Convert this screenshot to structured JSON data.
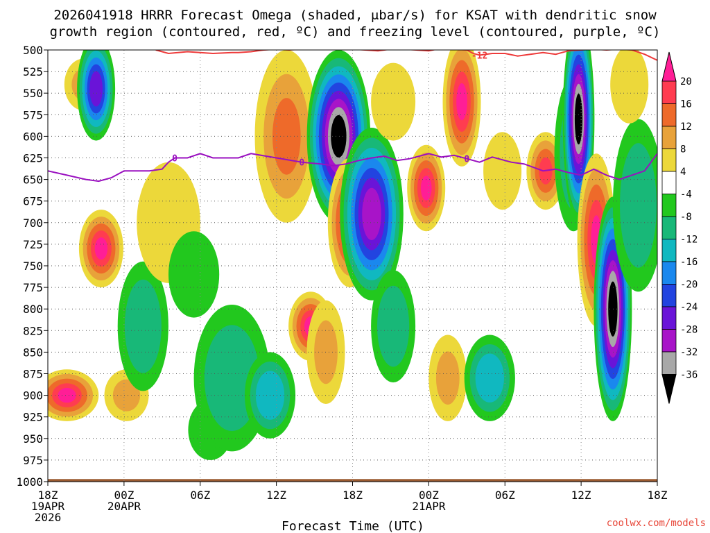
{
  "chart_data": {
    "type": "heatmap",
    "title_line1": "2026041918 HRRR Forecast Omega (shaded, μbar/s) for KSAT with dendritic snow",
    "title_line2": "growth region (contoured, red, ºC) and freezing level (contoured, purple, ºC)",
    "xlabel": "Forecast Time (UTC)",
    "ylabel": "",
    "y_axis": {
      "range": [
        1000,
        500
      ],
      "ticks": [
        500,
        525,
        550,
        575,
        600,
        625,
        650,
        675,
        700,
        725,
        750,
        775,
        800,
        825,
        850,
        875,
        900,
        925,
        950,
        975,
        1000
      ]
    },
    "x_axis": {
      "range_hours": [
        0,
        48
      ],
      "ticks": [
        {
          "hour": 0,
          "lines": [
            "18Z",
            "19APR",
            "2026"
          ]
        },
        {
          "hour": 6,
          "lines": [
            "00Z",
            "20APR"
          ]
        },
        {
          "hour": 12,
          "lines": [
            "06Z"
          ]
        },
        {
          "hour": 18,
          "lines": [
            "12Z"
          ]
        },
        {
          "hour": 24,
          "lines": [
            "18Z"
          ]
        },
        {
          "hour": 30,
          "lines": [
            "00Z",
            "21APR"
          ]
        },
        {
          "hour": 36,
          "lines": [
            "06Z"
          ]
        },
        {
          "hour": 42,
          "lines": [
            "12Z"
          ]
        },
        {
          "hour": 48,
          "lines": [
            "18Z"
          ]
        }
      ]
    },
    "grid": true,
    "colorbar": {
      "labels": [
        "20",
        "16",
        "12",
        "8",
        "4",
        "-4",
        "-8",
        "-12",
        "-16",
        "-20",
        "-24",
        "-28",
        "-32",
        "-36"
      ],
      "bins": [
        {
          "range": [
            16,
            20
          ],
          "color": "#ff3c50"
        },
        {
          "range": [
            12,
            16
          ],
          "color": "#ee6a2a"
        },
        {
          "range": [
            8,
            12
          ],
          "color": "#e8a23a"
        },
        {
          "range": [
            4,
            8
          ],
          "color": "#ecd83a"
        },
        {
          "range": [
            -4,
            4
          ],
          "color": "#ffffff"
        },
        {
          "range": [
            -8,
            -4
          ],
          "color": "#22c81e"
        },
        {
          "range": [
            -12,
            -8
          ],
          "color": "#18b878"
        },
        {
          "range": [
            -16,
            -12
          ],
          "color": "#10b8c0"
        },
        {
          "range": [
            -20,
            -16
          ],
          "color": "#1a88ee"
        },
        {
          "range": [
            -24,
            -20
          ],
          "color": "#2244e0"
        },
        {
          "range": [
            -28,
            -24
          ],
          "color": "#6a14d8"
        },
        {
          "range": [
            -32,
            -28
          ],
          "color": "#a814c8"
        },
        {
          "range": [
            -36,
            -32
          ],
          "color": "#a8a8a8"
        }
      ],
      "above_color": "#ff1e96",
      "below_color": "#000000"
    },
    "features": [
      {
        "hour": 1.5,
        "p": 900,
        "w": 5,
        "h": 60,
        "value": 20
      },
      {
        "hour": 4.2,
        "p": 730,
        "w": 3.5,
        "h": 90,
        "value": 20
      },
      {
        "hour": 2.8,
        "p": 540,
        "w": 3,
        "h": 60,
        "value": 8
      },
      {
        "hour": 3.8,
        "p": 545,
        "w": 3,
        "h": 120,
        "value": -28
      },
      {
        "hour": 6.2,
        "p": 900,
        "w": 3.5,
        "h": 60,
        "value": 8
      },
      {
        "hour": 7.5,
        "p": 820,
        "w": 4,
        "h": 150,
        "value": -12
      },
      {
        "hour": 9.5,
        "p": 700,
        "w": 5,
        "h": 140,
        "value": 6
      },
      {
        "hour": 11.5,
        "p": 760,
        "w": 4,
        "h": 100,
        "value": -8
      },
      {
        "hour": 12.8,
        "p": 940,
        "w": 3.5,
        "h": 70,
        "value": -8
      },
      {
        "hour": 14.5,
        "p": 880,
        "w": 6,
        "h": 170,
        "value": -10
      },
      {
        "hour": 17.5,
        "p": 900,
        "w": 4,
        "h": 100,
        "value": -16
      },
      {
        "hour": 18.8,
        "p": 600,
        "w": 5,
        "h": 200,
        "value": 12
      },
      {
        "hour": 20.7,
        "p": 820,
        "w": 3.5,
        "h": 80,
        "value": 20
      },
      {
        "hour": 21.9,
        "p": 850,
        "w": 3,
        "h": 120,
        "value": 8
      },
      {
        "hour": 22.9,
        "p": 600,
        "w": 5,
        "h": 200,
        "value": -40
      },
      {
        "hour": 23.8,
        "p": 700,
        "w": 3.5,
        "h": 150,
        "value": 20
      },
      {
        "hour": 25.5,
        "p": 690,
        "w": 5,
        "h": 200,
        "value": -30
      },
      {
        "hour": 27.2,
        "p": 820,
        "w": 3.5,
        "h": 130,
        "value": -12
      },
      {
        "hour": 27.2,
        "p": 560,
        "w": 3.5,
        "h": 90,
        "value": 4
      },
      {
        "hour": 29.8,
        "p": 660,
        "w": 3,
        "h": 100,
        "value": 20
      },
      {
        "hour": 32.6,
        "p": 560,
        "w": 3,
        "h": 150,
        "value": 20
      },
      {
        "hour": 31.5,
        "p": 880,
        "w": 3,
        "h": 100,
        "value": 8
      },
      {
        "hour": 34.8,
        "p": 880,
        "w": 4,
        "h": 100,
        "value": -16
      },
      {
        "hour": 35.8,
        "p": 640,
        "w": 3,
        "h": 90,
        "value": 6
      },
      {
        "hour": 39.2,
        "p": 640,
        "w": 3,
        "h": 90,
        "value": 16
      },
      {
        "hour": 41.4,
        "p": 620,
        "w": 3,
        "h": 180,
        "value": -12
      },
      {
        "hour": 41.8,
        "p": 580,
        "w": 2.5,
        "h": 240,
        "value": -40
      },
      {
        "hour": 43.2,
        "p": 720,
        "w": 3,
        "h": 200,
        "value": 20
      },
      {
        "hour": 44.5,
        "p": 800,
        "w": 3,
        "h": 260,
        "value": -40
      },
      {
        "hour": 46.5,
        "p": 680,
        "w": 4,
        "h": 200,
        "value": -12
      },
      {
        "hour": 45.8,
        "p": 540,
        "w": 3,
        "h": 90,
        "value": 6
      }
    ],
    "freezing_level": {
      "label": "0",
      "hours": [
        0,
        1.5,
        3,
        4,
        5,
        6,
        8,
        9,
        9.5,
        10,
        11,
        12,
        13,
        15,
        16,
        18,
        20,
        21.5,
        22.5,
        23.5,
        24.5,
        25.5,
        26.5,
        27.5,
        28.5,
        30,
        31,
        32,
        33,
        34,
        35,
        36.5,
        37.5,
        39,
        40,
        41,
        42,
        43,
        44,
        45,
        46,
        47,
        48
      ],
      "pressure": [
        640,
        645,
        650,
        652,
        648,
        640,
        640,
        638,
        630,
        625,
        625,
        620,
        625,
        625,
        620,
        625,
        630,
        632,
        634,
        632,
        628,
        625,
        623,
        628,
        626,
        620,
        624,
        622,
        626,
        630,
        624,
        630,
        632,
        640,
        638,
        642,
        645,
        638,
        645,
        650,
        645,
        640,
        620
      ]
    },
    "dgz_line": {
      "label": "-12",
      "hours": [
        8.5,
        9.5,
        11,
        13,
        14.5,
        15,
        16,
        17,
        18,
        19,
        20,
        21,
        22,
        23,
        24,
        25,
        26,
        27,
        28,
        29,
        30,
        31,
        32,
        33,
        33.5,
        34,
        35,
        36,
        37,
        38,
        39,
        40,
        41,
        42,
        43,
        44,
        45,
        46,
        47,
        48
      ],
      "pressure": [
        500,
        504,
        502,
        504,
        503,
        503,
        502,
        500,
        499,
        500,
        499,
        498,
        499,
        498,
        499,
        500,
        501,
        499,
        499,
        500,
        501,
        498,
        499,
        500,
        504,
        506,
        504,
        504,
        507,
        505,
        503,
        505,
        501,
        500,
        499,
        500,
        499,
        500,
        505,
        512
      ]
    },
    "credit": "coolwx.com/models"
  }
}
